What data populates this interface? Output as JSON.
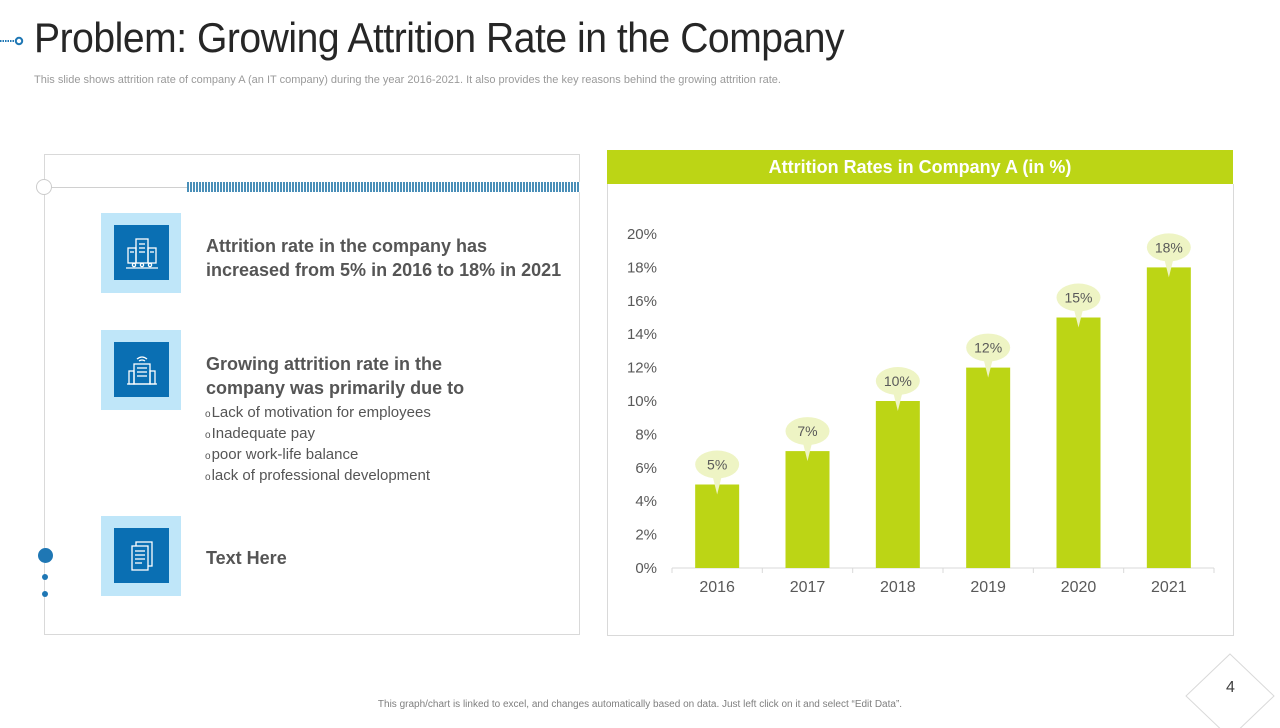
{
  "slide": {
    "title": "Problem: Growing Attrition Rate in the Company",
    "subtitle": "This slide shows attrition rate of company A  (an IT company) during the year 2016-2021. It also provides the key reasons behind the growing attrition rate.",
    "footer": "This graph/chart is linked to excel, and changes automatically based on data. Just left click on it and select “Edit Data”.",
    "page_number": "4"
  },
  "left_panel": {
    "items": [
      {
        "icon": "office-building-icon",
        "heading_line1": "Attrition rate in the company has",
        "heading_line2": "increased from 5% in 2016 to 18% in 2021"
      },
      {
        "icon": "company-building-icon",
        "heading_line1": "Growing attrition rate in the",
        "heading_line2": "company was primarily due to",
        "bullet_mark": "o",
        "bullets": [
          "Lack of motivation for employees",
          "Inadequate pay",
          "poor work-life balance",
          "lack of professional development"
        ]
      },
      {
        "icon": "document-icon",
        "heading_line1": "Text Here"
      }
    ]
  },
  "colors": {
    "accent_blue": "#0a6fb3",
    "icon_bg": "#bfe6f9",
    "bar_green": "#bcd515",
    "label_bubble": "#eef4c4"
  },
  "chart_data": {
    "type": "bar",
    "title": "Attrition Rates in Company A (in %)",
    "categories": [
      "2016",
      "2017",
      "2018",
      "2019",
      "2020",
      "2021"
    ],
    "values": [
      5,
      7,
      10,
      12,
      15,
      18
    ],
    "data_labels": [
      "5%",
      "7%",
      "10%",
      "12%",
      "15%",
      "18%"
    ],
    "y_ticks": [
      0,
      2,
      4,
      6,
      8,
      10,
      12,
      14,
      16,
      18,
      20
    ],
    "y_tick_labels": [
      "0%",
      "2%",
      "4%",
      "6%",
      "8%",
      "10%",
      "12%",
      "14%",
      "16%",
      "18%",
      "20%"
    ],
    "ylim": [
      0,
      20
    ],
    "xlabel": "",
    "ylabel": "",
    "grid": false,
    "legend": "none"
  }
}
